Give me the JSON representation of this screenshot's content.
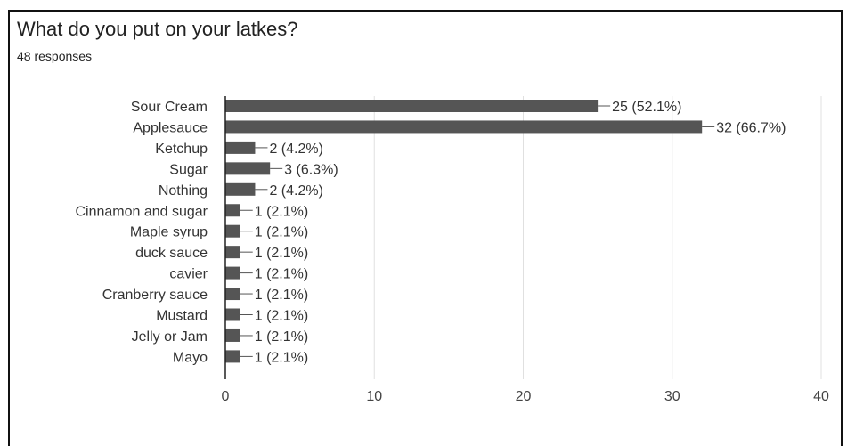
{
  "title": "What do you put on your latkes?",
  "subtitle": "48 responses",
  "colors": {
    "bar": "#555555",
    "grid": "#e0e0e0",
    "axis": "#222222"
  },
  "chart_data": {
    "type": "bar",
    "orientation": "horizontal",
    "categories": [
      "Sour Cream",
      "Applesauce",
      "Ketchup",
      "Sugar",
      "Nothing",
      "Cinnamon and sugar",
      "Maple syrup",
      "duck sauce",
      "cavier",
      "Cranberry sauce",
      "Mustard",
      "Jelly or Jam",
      "Mayo"
    ],
    "values": [
      25,
      32,
      2,
      3,
      2,
      1,
      1,
      1,
      1,
      1,
      1,
      1,
      1
    ],
    "data_labels": [
      "25 (52.1%)",
      "32 (66.7%)",
      "2 (4.2%)",
      "3 (6.3%)",
      "2 (4.2%)",
      "1 (2.1%)",
      "1 (2.1%)",
      "1 (2.1%)",
      "1 (2.1%)",
      "1 (2.1%)",
      "1 (2.1%)",
      "1 (2.1%)",
      "1 (2.1%)"
    ],
    "xlim": [
      0,
      40
    ],
    "xticks": [
      0,
      10,
      20,
      30,
      40
    ],
    "grid": true,
    "title": "What do you put on your latkes?",
    "xlabel": "",
    "ylabel": ""
  }
}
